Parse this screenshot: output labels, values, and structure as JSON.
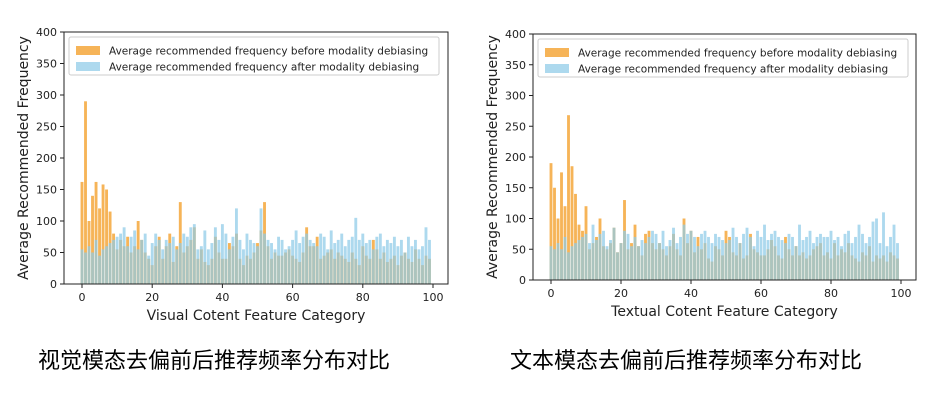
{
  "chart_data": [
    {
      "type": "bar",
      "title": "",
      "xlabel": "Visual Cotent Feature Category",
      "ylabel": "Average Recommended Frequency",
      "xlim": [
        0,
        100
      ],
      "ylim": [
        0,
        400
      ],
      "xticks": [
        0,
        20,
        40,
        60,
        80,
        100
      ],
      "yticks": [
        0,
        50,
        100,
        150,
        200,
        250,
        300,
        350,
        400
      ],
      "grid": false,
      "legend": "top-left",
      "caption": "视觉模态去偏前后推荐频率分布对比",
      "colors": {
        "before": "#f5b04f",
        "after": "#8ecae8"
      },
      "series": [
        {
          "name": "Average recommended frequency before modality debiasing",
          "values": [
            162,
            290,
            100,
            140,
            162,
            120,
            158,
            150,
            115,
            80,
            55,
            70,
            60,
            75,
            50,
            60,
            100,
            70,
            50,
            40,
            30,
            60,
            75,
            40,
            60,
            80,
            35,
            60,
            130,
            50,
            60,
            70,
            90,
            40,
            55,
            35,
            30,
            40,
            75,
            50,
            40,
            40,
            65,
            60,
            80,
            40,
            30,
            45,
            40,
            50,
            65,
            85,
            130,
            60,
            40,
            50,
            45,
            45,
            50,
            55,
            45,
            40,
            35,
            50,
            90,
            60,
            60,
            75,
            40,
            45,
            50,
            55,
            40,
            50,
            45,
            40,
            35,
            50,
            40,
            30,
            60,
            45,
            40,
            70,
            55,
            40,
            50,
            35,
            40,
            45,
            30,
            45,
            50,
            40,
            35,
            55,
            40,
            30,
            45,
            40
          ]
        },
        {
          "name": "Average recommended frequency after modality debiasing",
          "values": [
            55,
            50,
            60,
            50,
            70,
            45,
            55,
            60,
            65,
            70,
            75,
            80,
            90,
            60,
            75,
            85,
            55,
            70,
            80,
            45,
            65,
            80,
            70,
            55,
            70,
            65,
            75,
            55,
            65,
            80,
            75,
            90,
            95,
            55,
            60,
            85,
            55,
            65,
            90,
            70,
            95,
            80,
            55,
            75,
            120,
            70,
            55,
            80,
            70,
            65,
            60,
            120,
            80,
            70,
            65,
            55,
            75,
            70,
            55,
            60,
            70,
            85,
            65,
            75,
            80,
            70,
            65,
            60,
            80,
            75,
            55,
            85,
            65,
            70,
            80,
            60,
            70,
            75,
            105,
            70,
            80,
            65,
            70,
            55,
            75,
            80,
            60,
            70,
            65,
            75,
            60,
            70,
            50,
            75,
            60,
            70,
            55,
            60,
            90,
            70
          ]
        }
      ]
    },
    {
      "type": "bar",
      "title": "",
      "xlabel": "Textual Cotent Feature Category",
      "ylabel": "Average Recommended Frequency",
      "xlim": [
        0,
        100
      ],
      "ylim": [
        0,
        400
      ],
      "xticks": [
        0,
        20,
        40,
        60,
        80,
        100
      ],
      "yticks": [
        0,
        50,
        100,
        150,
        200,
        250,
        300,
        350,
        400
      ],
      "grid": false,
      "legend": "top-left",
      "caption": "文本模态去偏前后推荐频率分布对比",
      "colors": {
        "before": "#f5b04f",
        "after": "#8ecae8"
      },
      "series": [
        {
          "name": "Average recommended frequency before modality debiasing",
          "values": [
            190,
            150,
            100,
            175,
            120,
            268,
            185,
            140,
            90,
            80,
            120,
            50,
            60,
            70,
            100,
            55,
            50,
            60,
            85,
            45,
            60,
            130,
            50,
            60,
            90,
            55,
            40,
            75,
            80,
            60,
            50,
            60,
            50,
            40,
            55,
            75,
            50,
            40,
            100,
            60,
            80,
            45,
            70,
            50,
            60,
            35,
            30,
            55,
            50,
            40,
            80,
            70,
            45,
            40,
            60,
            35,
            40,
            75,
            50,
            45,
            40,
            40,
            50,
            65,
            55,
            40,
            35,
            70,
            50,
            40,
            55,
            40,
            45,
            35,
            40,
            50,
            55,
            60,
            40,
            45,
            35,
            60,
            40,
            50,
            45,
            60,
            40,
            35,
            30,
            45,
            40,
            55,
            30,
            40,
            35,
            40,
            30,
            45,
            40,
            35
          ]
        },
        {
          "name": "Average recommended frequency after modality debiasing",
          "values": [
            55,
            50,
            60,
            50,
            70,
            45,
            55,
            60,
            65,
            70,
            75,
            60,
            90,
            65,
            75,
            80,
            55,
            65,
            85,
            45,
            60,
            80,
            75,
            55,
            70,
            55,
            65,
            60,
            70,
            80,
            75,
            60,
            80,
            55,
            65,
            85,
            60,
            70,
            90,
            75,
            80,
            70,
            55,
            75,
            80,
            70,
            60,
            75,
            70,
            65,
            60,
            65,
            85,
            70,
            60,
            75,
            85,
            70,
            55,
            80,
            70,
            90,
            65,
            75,
            80,
            70,
            65,
            60,
            75,
            70,
            55,
            90,
            65,
            70,
            80,
            60,
            70,
            75,
            70,
            70,
            80,
            65,
            70,
            55,
            75,
            80,
            60,
            70,
            90,
            75,
            60,
            70,
            95,
            100,
            60,
            110,
            55,
            70,
            90,
            60
          ]
        }
      ]
    }
  ]
}
